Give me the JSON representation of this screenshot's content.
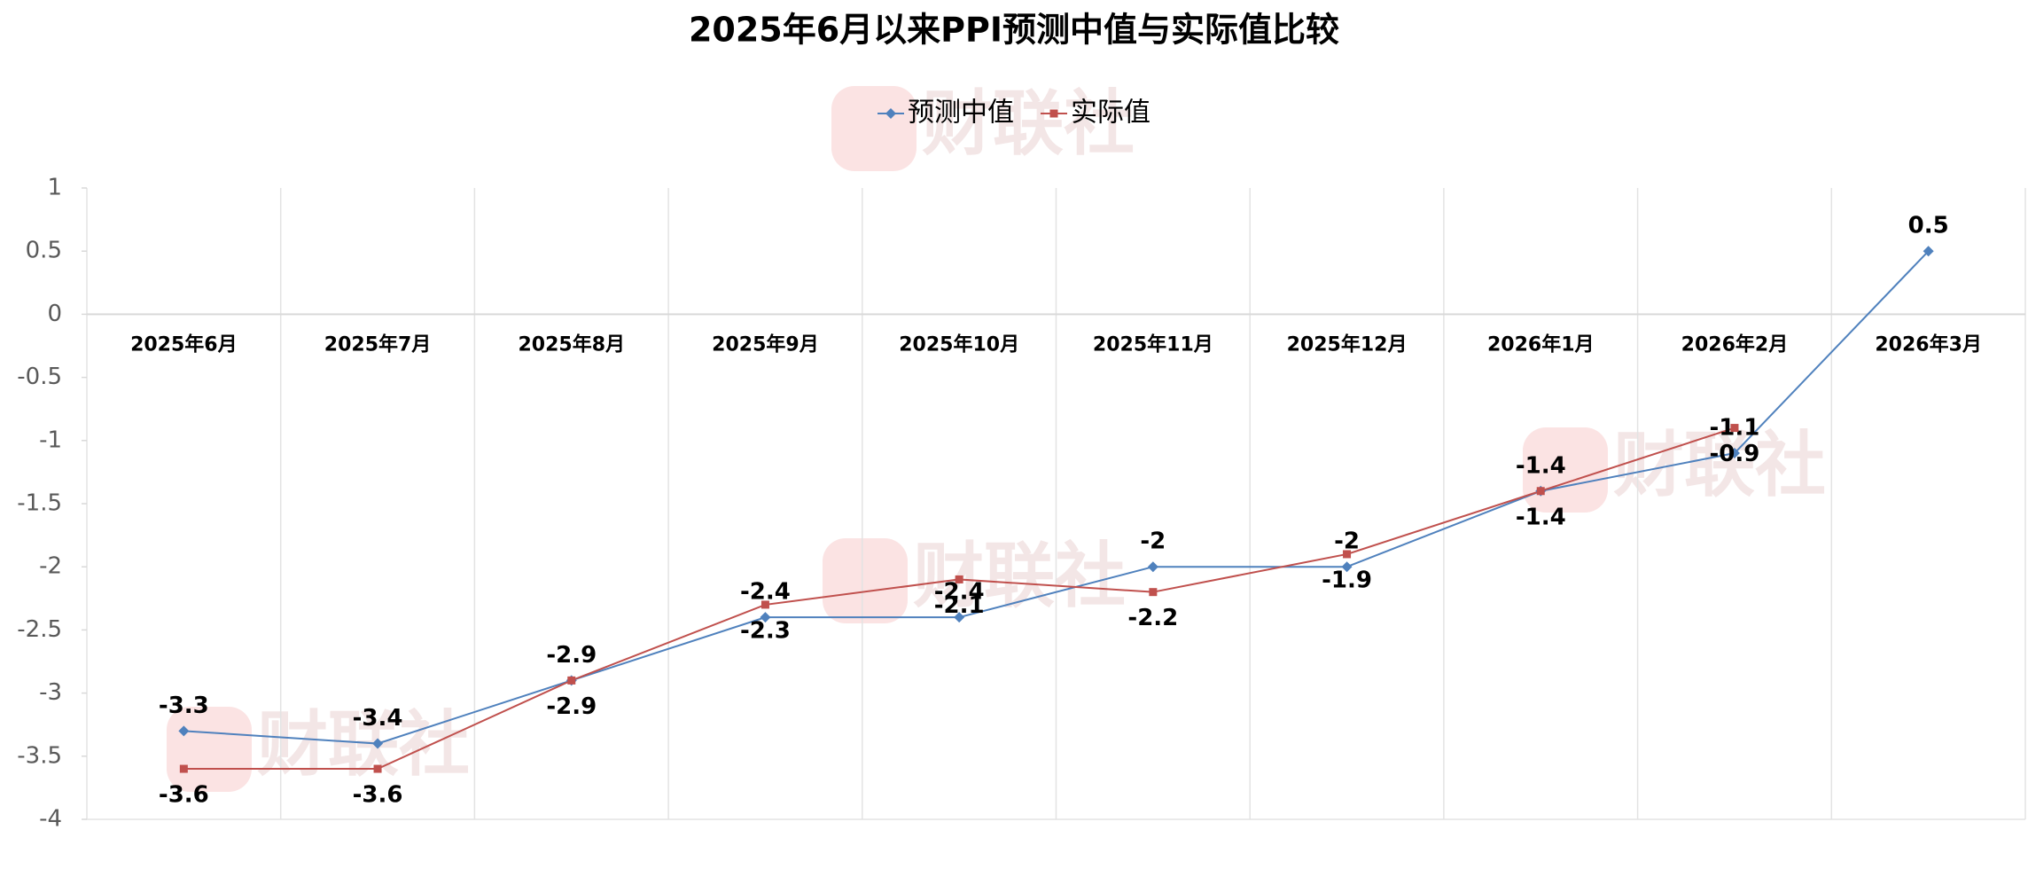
{
  "chart_data": {
    "type": "line",
    "title": "2025年6月以来PPI预测中值与实际值比较",
    "watermark": "财联社",
    "categories": [
      "2025年6月",
      "2025年7月",
      "2025年8月",
      "2025年9月",
      "2025年10月",
      "2025年11月",
      "2025年12月",
      "2026年1月",
      "2026年2月",
      "2026年3月"
    ],
    "series": [
      {
        "name": "预测中值",
        "color": "#4f81bd",
        "marker": "diamond",
        "values": [
          -3.3,
          -3.4,
          -2.9,
          -2.4,
          -2.4,
          -2,
          -2,
          -1.4,
          -1.1,
          0.5
        ]
      },
      {
        "name": "实际值",
        "color": "#c0504d",
        "marker": "square",
        "values": [
          -3.6,
          -3.6,
          -2.9,
          -2.3,
          -2.1,
          -2.2,
          -1.9,
          -1.4,
          -0.9,
          null
        ]
      }
    ],
    "ylim": [
      -4,
      1
    ],
    "yticks": [
      -4,
      -3.5,
      -3,
      -2.5,
      -2,
      -1.5,
      -1,
      -0.5,
      0,
      0.5,
      1
    ],
    "legend": "top"
  }
}
